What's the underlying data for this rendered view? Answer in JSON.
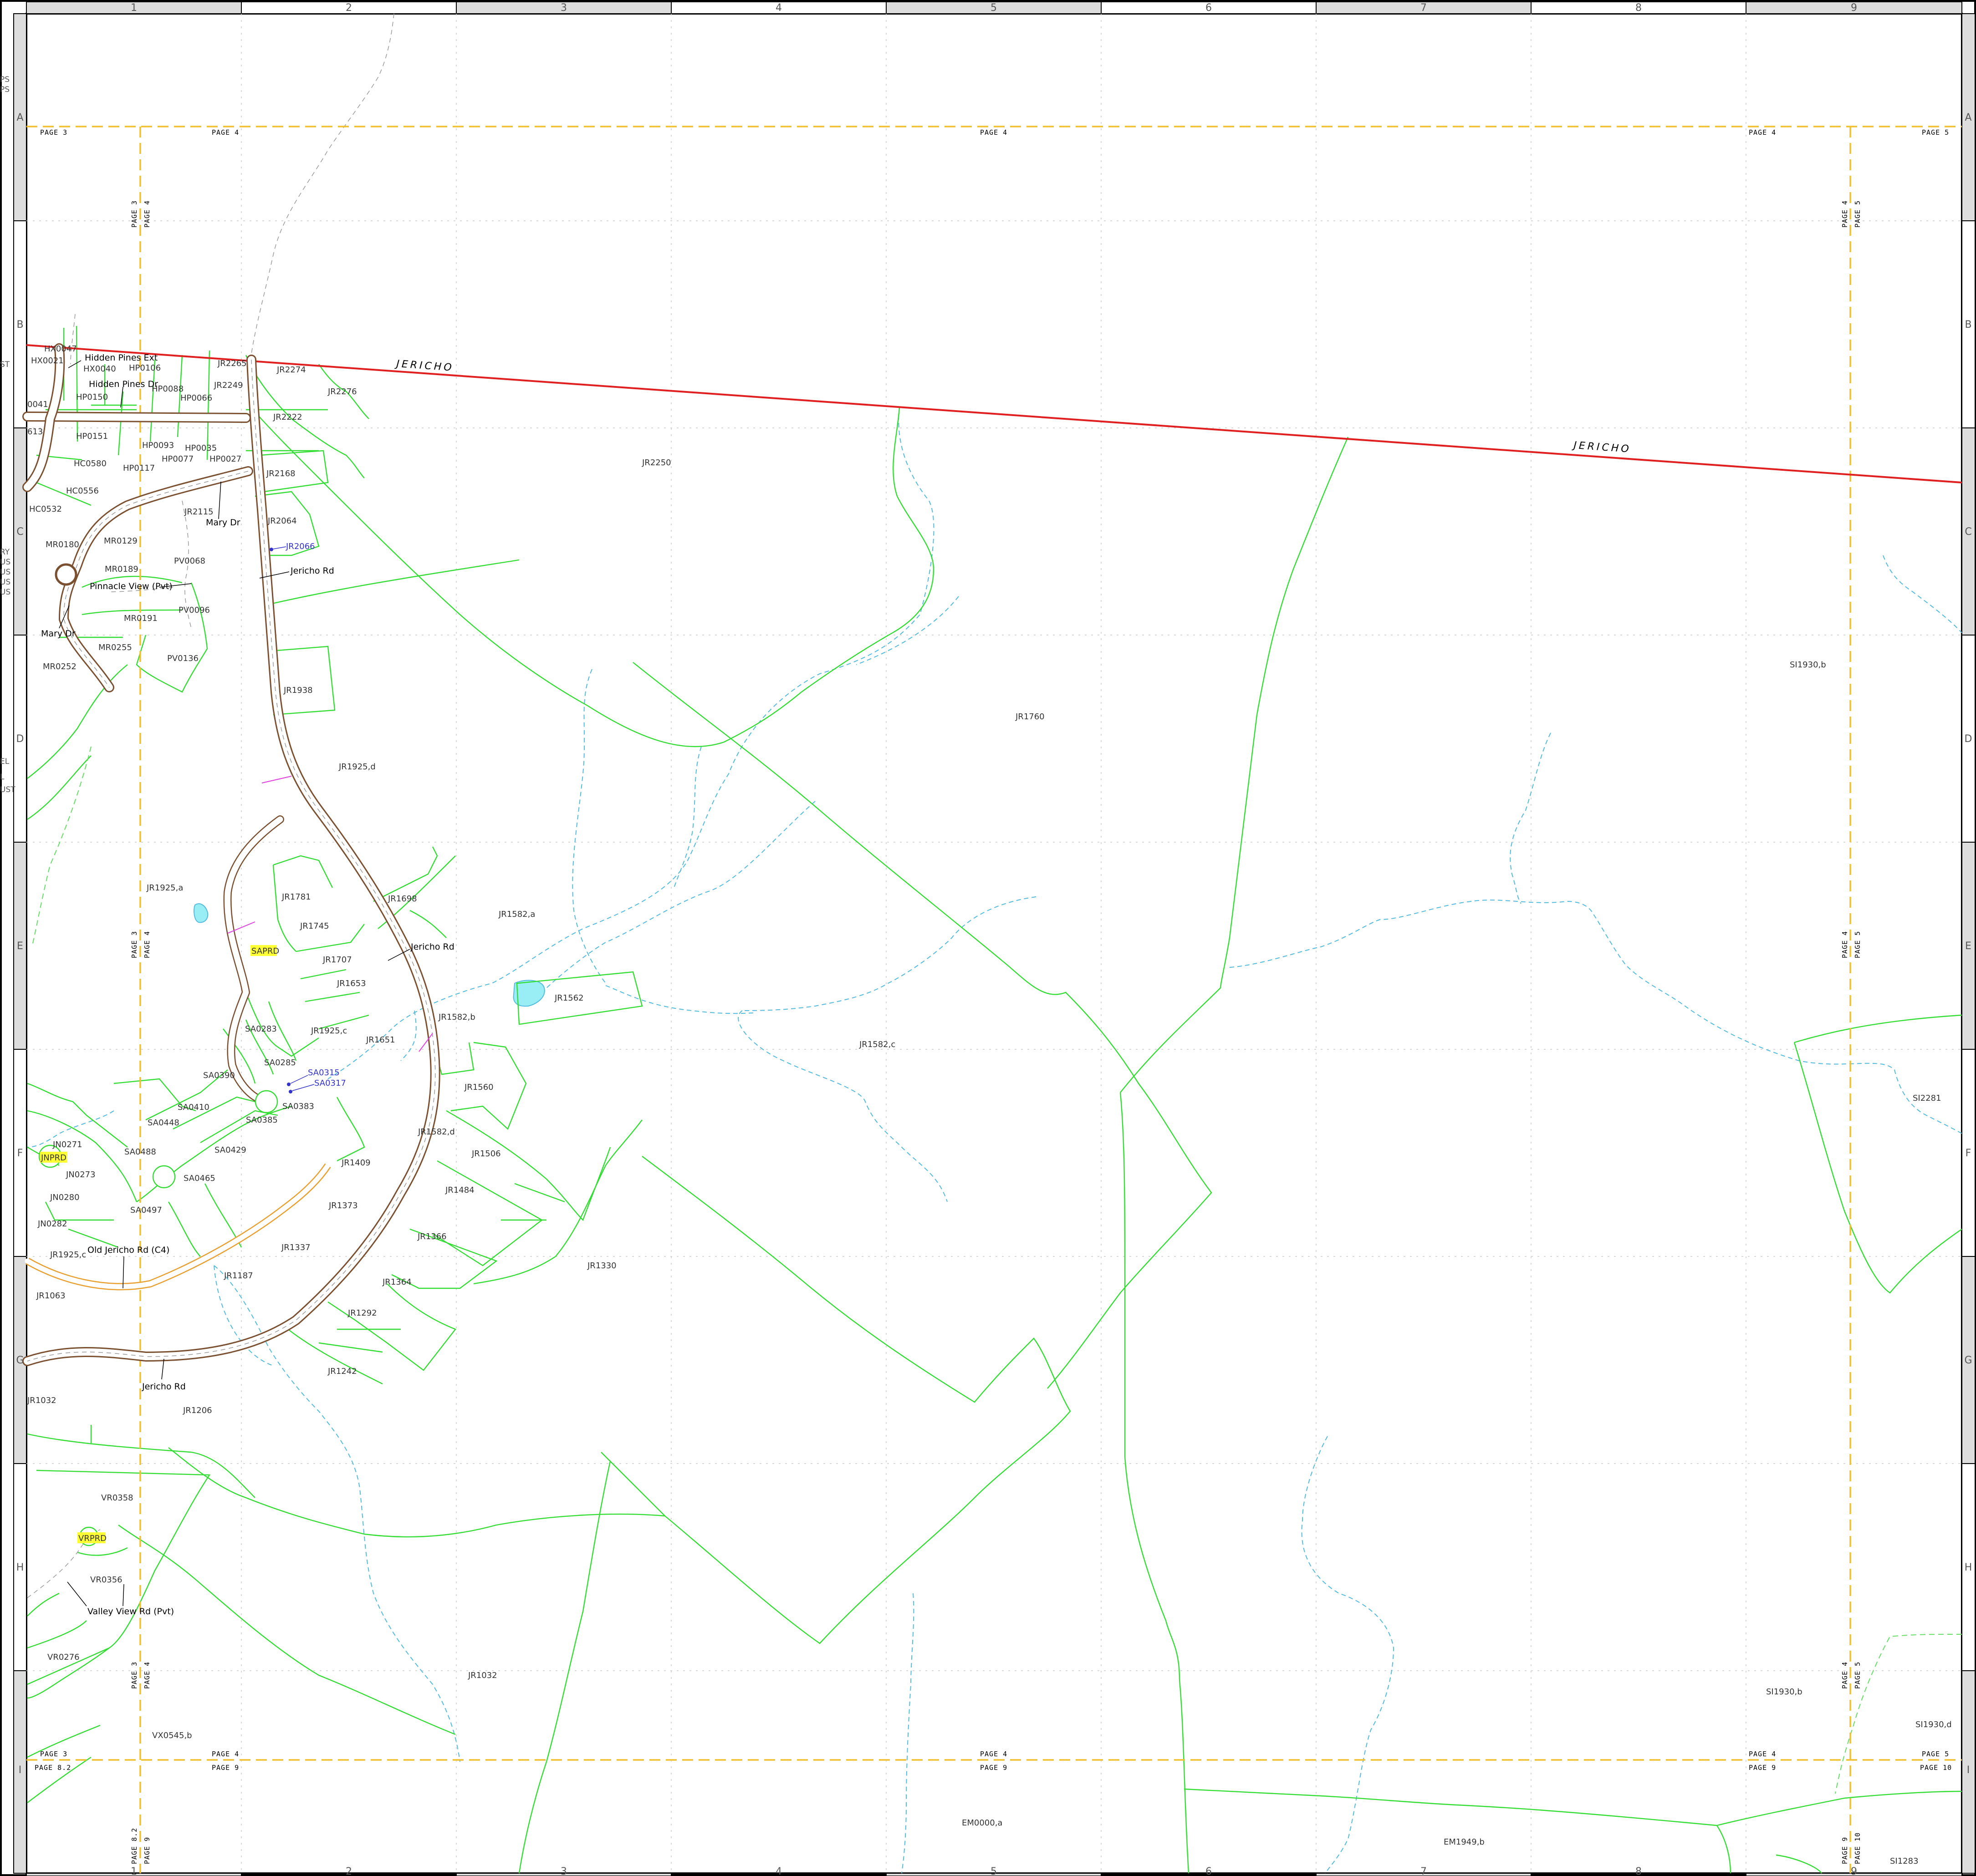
{
  "grid": {
    "columns": [
      "1",
      "2",
      "3",
      "4",
      "5",
      "6",
      "7",
      "8",
      "9"
    ],
    "rows": [
      "A",
      "B",
      "C",
      "D",
      "E",
      "F",
      "G",
      "H",
      "I"
    ]
  },
  "left_margin_fragments": [
    "PS",
    "PS",
    "ST",
    "RY",
    "US",
    "US",
    "US",
    "US",
    "EL",
    "L",
    "UST"
  ],
  "town_labels": [
    "JERICHO",
    "JERICHO"
  ],
  "page_labels": {
    "top": [
      "PAGE 3",
      "PAGE 4",
      "PAGE 4",
      "PAGE 4",
      "PAGE 5"
    ],
    "bottom_upper": [
      "PAGE 3",
      "PAGE 4",
      "PAGE 4",
      "PAGE 4",
      "PAGE 5"
    ],
    "bottom_lower": [
      "PAGE 8.2",
      "PAGE 9",
      "PAGE 9",
      "PAGE 9",
      "PAGE 10"
    ],
    "left_vertical": [
      [
        "PAGE 3",
        "PAGE 4"
      ],
      [
        "PAGE 3",
        "PAGE 4"
      ],
      [
        "PAGE 3",
        "PAGE 4"
      ],
      [
        "PAGE 8.2",
        "PAGE 9"
      ]
    ],
    "right_vertical": [
      [
        "PAGE 4",
        "PAGE 5"
      ],
      [
        "PAGE 4",
        "PAGE 5"
      ],
      [
        "PAGE 4",
        "PAGE 5"
      ],
      [
        "PAGE 9",
        "PAGE 10"
      ]
    ]
  },
  "roads": [
    "Hidden Pines Ext",
    "Hidden Pines Dr",
    "Mary Dr",
    "Pinnacle View (Pvt)",
    "Mary Dr",
    "Jericho Rd",
    "Jericho Rd",
    "Old Jericho Rd (C4)",
    "Jericho Rd",
    "Valley View Rd (Pvt)"
  ],
  "highlighted_labels": [
    "SAPRD",
    "JNPRD",
    "VRPRD"
  ],
  "blue_labels": [
    "JR2066",
    "SA0315",
    "SA0317"
  ],
  "parcels": [
    "HX0047",
    "HX0021",
    "HX0040",
    "HP0106",
    "JR2265",
    "JR2249",
    "JR2274",
    "0041",
    "HP0150",
    "HP0088",
    "HP0066",
    "JR2276",
    "613",
    "JR2222",
    "HP0151",
    "HP0093",
    "HP0035",
    "HC0580",
    "HP0077",
    "HP0027",
    "HP0117",
    "JR2168",
    "HC0556",
    "JR2115",
    "HC0532",
    "JR2064",
    "MR0180",
    "MR0129",
    "PV0068",
    "MR0189",
    "MR0191",
    "PV0096",
    "MR0255",
    "PV0136",
    "MR0252",
    "JR1938",
    "JR1925,d",
    "JR1925,a",
    "JR1781",
    "JR1698",
    "JR1745",
    "JR1707",
    "JR1653",
    "JR1582,a",
    "JR1562",
    "JR1582,b",
    "SA0283",
    "JR1925,c",
    "JR1651",
    "SA0285",
    "SA0390",
    "SA0383",
    "JR1560",
    "SA0410",
    "SA0448",
    "SA0385",
    "JR1582,d",
    "JN0271",
    "SA0488",
    "SA0429",
    "JR1409",
    "JR1506",
    "JN0273",
    "SA0465",
    "JR1484",
    "JN0280",
    "SA0497",
    "JR1373",
    "JN0282",
    "JR1366",
    "JR1925,c",
    "JR1337",
    "JR1330",
    "JR1187",
    "JR1364",
    "JR1063",
    "JR1292",
    "JR1032",
    "JR1242",
    "JR1206",
    "VR0358",
    "VR0356",
    "VR0276",
    "JR1032",
    "VX0545,b",
    "JR2250",
    "JR1760",
    "JR1582,c",
    "SI1930,b",
    "SI2281",
    "SI1930,b",
    "SI1930,d",
    "EM0000,a",
    "EM1949,b",
    "SI1283"
  ],
  "colors": {
    "parcel_line": "#33dd33",
    "town_line": "#e02020",
    "stream": "#55bbdd",
    "road_outline": "#7a5030",
    "county_road": "#e8a030",
    "page_line": "#f0c030",
    "highlight": "#ffff33",
    "pond": "#99eef5"
  }
}
